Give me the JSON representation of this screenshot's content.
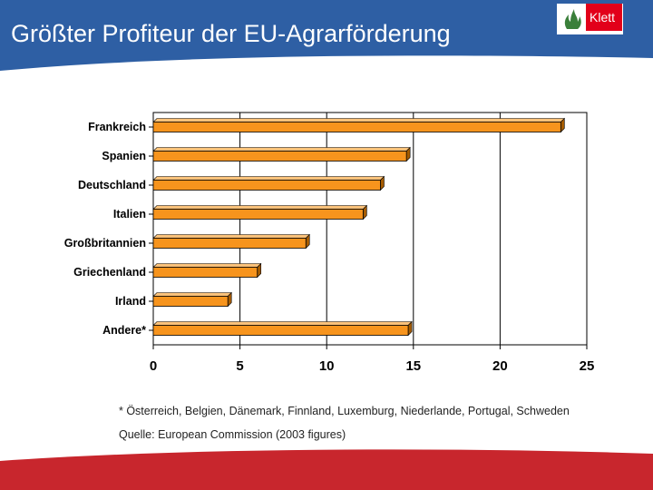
{
  "header": {
    "title": "Größter Profiteur der EU-Agrarförderung"
  },
  "logo": {
    "text": "Klett"
  },
  "colors": {
    "header_bg": "#2e5fa4",
    "footer_bg": "#c8262d",
    "bar": "#f7941d",
    "bar_dark": "#a65c00",
    "logo_red": "#e2001a"
  },
  "chart_data": {
    "type": "bar",
    "orientation": "horizontal",
    "categories": [
      "Frankreich",
      "Spanien",
      "Deutschland",
      "Italien",
      "Großbritannien",
      "Griechenland",
      "Irland",
      "Andere*"
    ],
    "values": [
      23.5,
      14.6,
      13.1,
      12.1,
      8.8,
      6.0,
      4.3,
      14.7
    ],
    "xlim": [
      0,
      25
    ],
    "xticks": [
      "0",
      "5",
      "10",
      "15",
      "20",
      "25"
    ],
    "title": "",
    "xlabel": "",
    "ylabel": "",
    "grid": "vertical"
  },
  "footnote": "* Österreich, Belgien, Dänemark, Finnland, Luxemburg, Niederlande, Portugal, Schweden",
  "source": "Quelle: European Commission (2003 figures)"
}
